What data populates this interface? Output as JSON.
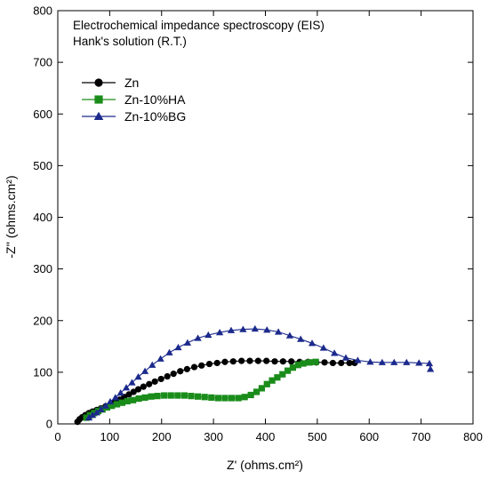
{
  "chart_data": {
    "type": "scatter",
    "title": "",
    "annotations": [
      "Electrochemical impedance spectroscopy (EIS)",
      "Hank's solution (R.T.)"
    ],
    "xlabel": "Z' (ohms.cm²)",
    "ylabel": "-Z'' (ohms.cm²)",
    "xlim": [
      0,
      800
    ],
    "ylim": [
      0,
      800
    ],
    "xticks": [
      0,
      100,
      200,
      300,
      400,
      500,
      600,
      700,
      800
    ],
    "yticks": [
      0,
      100,
      200,
      300,
      400,
      500,
      600,
      700,
      800
    ],
    "grid": false,
    "legend_position": "top-left",
    "series": [
      {
        "name": "Zn",
        "color": "#000000",
        "marker": "circle",
        "points": [
          [
            38,
            4
          ],
          [
            42,
            9
          ],
          [
            47,
            13
          ],
          [
            53,
            17
          ],
          [
            60,
            21
          ],
          [
            67,
            24
          ],
          [
            75,
            27
          ],
          [
            83,
            30
          ],
          [
            92,
            34
          ],
          [
            101,
            38
          ],
          [
            110,
            42
          ],
          [
            119,
            47
          ],
          [
            128,
            52
          ],
          [
            137,
            57
          ],
          [
            146,
            62
          ],
          [
            155,
            67
          ],
          [
            165,
            72
          ],
          [
            176,
            77
          ],
          [
            187,
            82
          ],
          [
            199,
            87
          ],
          [
            211,
            92
          ],
          [
            223,
            97
          ],
          [
            236,
            102
          ],
          [
            249,
            106
          ],
          [
            263,
            110
          ],
          [
            277,
            113
          ],
          [
            292,
            116
          ],
          [
            307,
            118
          ],
          [
            322,
            120
          ],
          [
            338,
            121
          ],
          [
            354,
            122
          ],
          [
            370,
            122
          ],
          [
            386,
            122
          ],
          [
            402,
            122
          ],
          [
            418,
            121
          ],
          [
            434,
            121
          ],
          [
            450,
            121
          ],
          [
            466,
            120
          ],
          [
            482,
            120
          ],
          [
            498,
            119
          ],
          [
            514,
            119
          ],
          [
            530,
            118
          ],
          [
            546,
            118
          ],
          [
            562,
            118
          ],
          [
            572,
            118
          ]
        ]
      },
      {
        "name": "Zn-10%HA",
        "color": "#1a8c1a",
        "marker": "square",
        "points": [
          [
            55,
            12
          ],
          [
            62,
            17
          ],
          [
            70,
            21
          ],
          [
            78,
            25
          ],
          [
            86,
            28
          ],
          [
            95,
            32
          ],
          [
            104,
            35
          ],
          [
            114,
            38
          ],
          [
            124,
            41
          ],
          [
            134,
            44
          ],
          [
            145,
            46
          ],
          [
            156,
            49
          ],
          [
            168,
            51
          ],
          [
            180,
            53
          ],
          [
            192,
            54
          ],
          [
            205,
            55
          ],
          [
            218,
            55
          ],
          [
            231,
            55
          ],
          [
            244,
            55
          ],
          [
            257,
            54
          ],
          [
            270,
            53
          ],
          [
            283,
            52
          ],
          [
            296,
            51
          ],
          [
            309,
            50
          ],
          [
            322,
            50
          ],
          [
            335,
            50
          ],
          [
            348,
            50
          ],
          [
            360,
            52
          ],
          [
            372,
            56
          ],
          [
            383,
            62
          ],
          [
            393,
            69
          ],
          [
            403,
            77
          ],
          [
            413,
            84
          ],
          [
            423,
            90
          ],
          [
            433,
            96
          ],
          [
            443,
            103
          ],
          [
            453,
            109
          ],
          [
            463,
            114
          ],
          [
            473,
            117
          ],
          [
            485,
            119
          ],
          [
            497,
            120
          ]
        ]
      },
      {
        "name": "Zn-10%BG",
        "color": "#1c2a8c",
        "marker": "triangle",
        "points": [
          [
            60,
            12
          ],
          [
            67,
            17
          ],
          [
            75,
            22
          ],
          [
            83,
            28
          ],
          [
            92,
            35
          ],
          [
            101,
            43
          ],
          [
            111,
            51
          ],
          [
            121,
            60
          ],
          [
            132,
            70
          ],
          [
            143,
            80
          ],
          [
            155,
            91
          ],
          [
            168,
            102
          ],
          [
            182,
            114
          ],
          [
            198,
            126
          ],
          [
            215,
            138
          ],
          [
            232,
            148
          ],
          [
            250,
            157
          ],
          [
            270,
            166
          ],
          [
            290,
            172
          ],
          [
            312,
            177
          ],
          [
            334,
            181
          ],
          [
            357,
            183
          ],
          [
            380,
            184
          ],
          [
            403,
            182
          ],
          [
            425,
            178
          ],
          [
            447,
            171
          ],
          [
            468,
            164
          ],
          [
            490,
            156
          ],
          [
            512,
            147
          ],
          [
            533,
            137
          ],
          [
            555,
            128
          ],
          [
            578,
            123
          ],
          [
            602,
            120
          ],
          [
            625,
            119
          ],
          [
            648,
            119
          ],
          [
            672,
            119
          ],
          [
            696,
            118
          ],
          [
            716,
            117
          ],
          [
            718,
            106
          ]
        ]
      }
    ]
  }
}
